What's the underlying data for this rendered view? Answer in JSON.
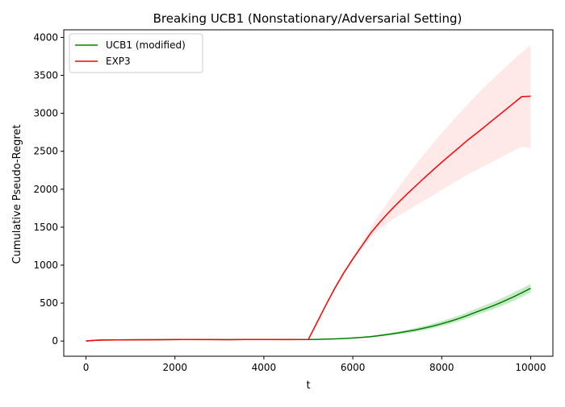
{
  "chart_data": {
    "type": "line",
    "title": "Breaking UCB1 (Nonstationary/Adversarial Setting)",
    "xlabel": "t",
    "ylabel": "Cumulative Pseudo-Regret",
    "xlim": [
      -500,
      10500
    ],
    "ylim": [
      -200,
      4100
    ],
    "xticks": [
      0,
      2000,
      4000,
      6000,
      8000,
      10000
    ],
    "yticks": [
      0,
      500,
      1000,
      1500,
      2000,
      2500,
      3000,
      3500,
      4000
    ],
    "grid": false,
    "legend_position": "top-left",
    "x": [
      0,
      200,
      400,
      1000,
      1600,
      2200,
      2800,
      3200,
      3600,
      4000,
      4500,
      5000,
      5200,
      5400,
      5600,
      5800,
      6000,
      6200,
      6400,
      6600,
      6800,
      7000,
      7200,
      7400,
      7600,
      7800,
      8000,
      8200,
      8400,
      8600,
      8800,
      9000,
      9200,
      9400,
      9600,
      9800,
      10000
    ],
    "series": [
      {
        "name": "UCB1 (modified)",
        "color": "#008000",
        "band_color": "#7fd07f",
        "values": [
          0,
          10,
          14,
          16,
          18,
          20,
          20,
          19,
          20,
          20,
          20,
          20,
          22,
          25,
          28,
          33,
          40,
          48,
          58,
          72,
          88,
          105,
          125,
          145,
          170,
          197,
          228,
          262,
          300,
          342,
          387,
          430,
          475,
          525,
          578,
          635,
          695
        ],
        "lower": [
          0,
          8,
          11,
          13,
          15,
          17,
          17,
          16,
          17,
          17,
          17,
          17,
          19,
          21,
          24,
          28,
          34,
          41,
          49,
          60,
          73,
          87,
          103,
          120,
          142,
          167,
          195,
          228,
          263,
          302,
          345,
          386,
          428,
          475,
          525,
          580,
          640
        ],
        "upper": [
          0,
          12,
          17,
          19,
          21,
          23,
          23,
          22,
          23,
          23,
          23,
          23,
          25,
          29,
          33,
          38,
          47,
          56,
          68,
          85,
          103,
          123,
          147,
          172,
          200,
          230,
          265,
          300,
          340,
          385,
          432,
          478,
          525,
          578,
          635,
          692,
          752
        ]
      },
      {
        "name": "EXP3",
        "color": "#ff0000",
        "band_color": "#ffcccc",
        "values": [
          0,
          10,
          14,
          16,
          18,
          20,
          19,
          18,
          20,
          20,
          19,
          20,
          250,
          480,
          700,
          900,
          1080,
          1250,
          1420,
          1560,
          1690,
          1810,
          1925,
          2035,
          2145,
          2250,
          2355,
          2455,
          2555,
          2655,
          2745,
          2840,
          2935,
          3030,
          3125,
          3220,
          3225
        ],
        "lower": [
          0,
          8,
          11,
          13,
          15,
          17,
          15,
          14,
          16,
          16,
          15,
          16,
          240,
          460,
          680,
          880,
          1060,
          1220,
          1360,
          1470,
          1560,
          1640,
          1710,
          1780,
          1850,
          1920,
          1990,
          2060,
          2130,
          2200,
          2260,
          2320,
          2380,
          2440,
          2500,
          2560,
          2540
        ],
        "upper": [
          0,
          12,
          17,
          19,
          21,
          23,
          23,
          22,
          24,
          24,
          23,
          24,
          260,
          500,
          720,
          930,
          1110,
          1290,
          1490,
          1670,
          1840,
          2000,
          2160,
          2310,
          2460,
          2600,
          2740,
          2870,
          3000,
          3130,
          3250,
          3370,
          3480,
          3590,
          3700,
          3800,
          3900
        ]
      }
    ]
  }
}
